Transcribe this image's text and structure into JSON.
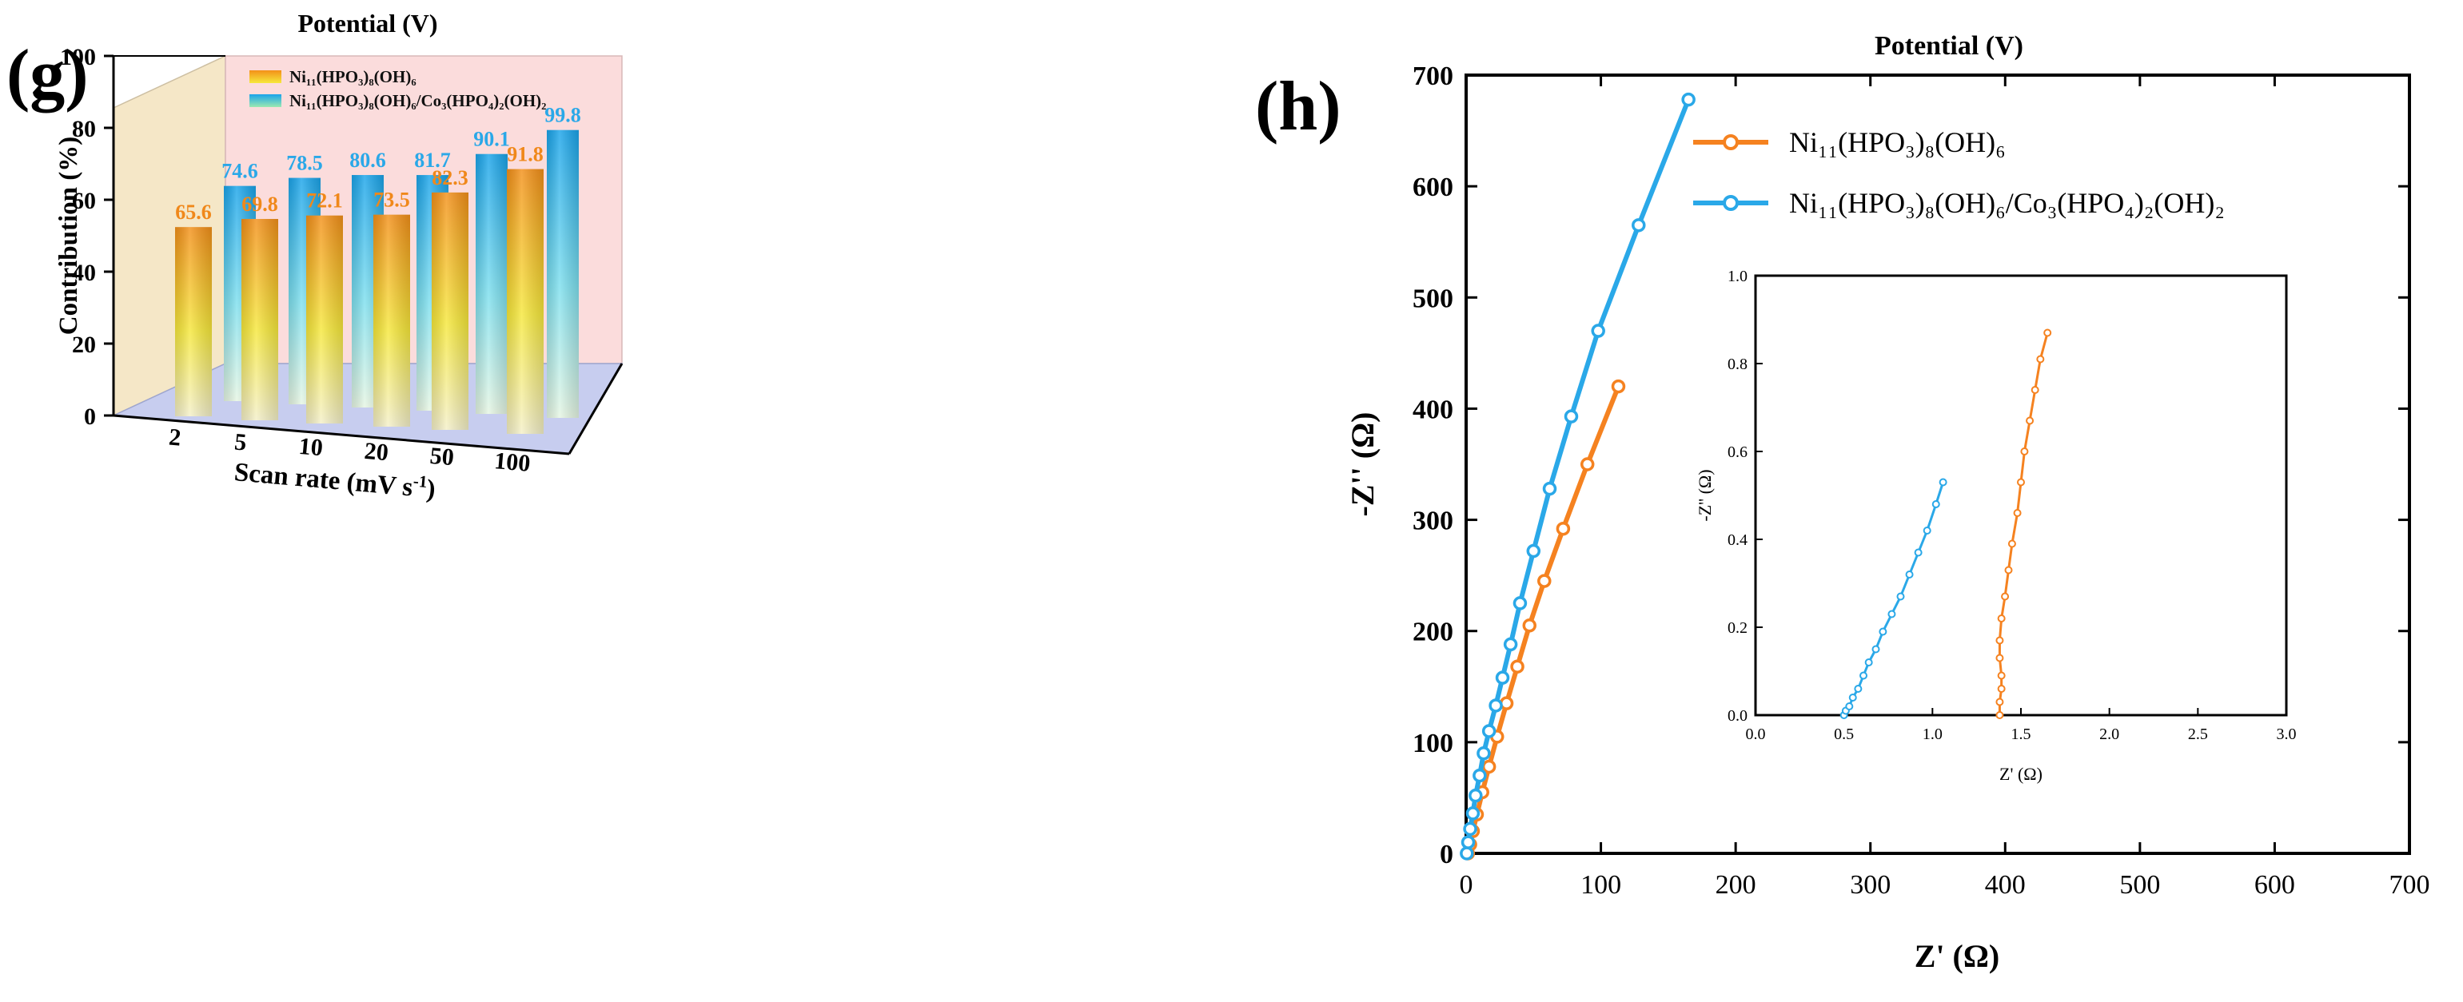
{
  "chart_data": [
    {
      "panel": "(g)",
      "type": "bar",
      "title": "Potential (V)",
      "xlabel": "Scan rate (mV s",
      "xlabel_sup": "-1",
      "xlabel_close": ")",
      "ylabel": "Contribution (%)",
      "ylim": [
        0,
        100
      ],
      "yticks": [
        "0",
        "20",
        "40",
        "60",
        "80",
        "100"
      ],
      "categories": [
        "2",
        "5",
        "10",
        "20",
        "50",
        "100"
      ],
      "legend_position": "top-left",
      "series": [
        {
          "name": "Ni11(HPO3)8(OH)6",
          "legend_label": "Ni₁₁(HPO₃)₈(OH)₆",
          "color": "#f0941e",
          "values": [
            65.6,
            69.8,
            72.1,
            73.5,
            82.3,
            91.8
          ],
          "labels": [
            "65.6",
            "69.8",
            "72.1",
            "73.5",
            "82.3",
            "91.8"
          ]
        },
        {
          "name": "Ni11(HPO3)8(OH)6/Co3(HPO4)2(OH)2",
          "legend_label": "Ni₁₁(HPO₃)₈(OH)₆/Co₃(HPO₄)₂(OH)₂",
          "color": "#2aa8e8",
          "values": [
            74.6,
            78.5,
            80.6,
            81.7,
            90.1,
            99.8
          ],
          "labels": [
            "74.6",
            "78.5",
            "80.6",
            "81.7",
            "90.1",
            "99.8"
          ]
        }
      ]
    },
    {
      "panel": "(h)",
      "type": "line",
      "title": "Potential (V)",
      "xlabel": "Z' (Ω)",
      "ylabel": "-Z'' (Ω)",
      "xlim": [
        0,
        700
      ],
      "ylim": [
        0,
        700
      ],
      "xticks": [
        "0",
        "100",
        "200",
        "300",
        "400",
        "500",
        "600",
        "700"
      ],
      "yticks": [
        "0",
        "100",
        "200",
        "300",
        "400",
        "500",
        "600",
        "700"
      ],
      "legend_position": "top-right",
      "series": [
        {
          "name": "Ni11(HPO3)8(OH)6",
          "legend_label": "Ni₁₁(HPO₃)₈(OH)₆",
          "color": "#f58220",
          "x": [
            1.4,
            3,
            5,
            8,
            12,
            17,
            23,
            30,
            38,
            47,
            58,
            72,
            90,
            113
          ],
          "y": [
            0,
            8,
            20,
            35,
            55,
            78,
            105,
            135,
            168,
            205,
            245,
            292,
            350,
            420
          ]
        },
        {
          "name": "Ni11(HPO3)8(OH)6/Co3(HPO4)2(OH)2",
          "legend_label": "Ni₁₁(HPO₃)₈(OH)₆/Co₃(HPO₄)₂(OH)₂",
          "color": "#2aa8e8",
          "x": [
            0.5,
            1.5,
            3,
            5,
            7,
            10,
            13,
            17,
            22,
            27,
            33,
            40,
            50,
            62,
            78,
            98,
            128,
            165
          ],
          "y": [
            0,
            10,
            22,
            36,
            52,
            70,
            90,
            110,
            133,
            158,
            188,
            225,
            272,
            328,
            393,
            470,
            565,
            678
          ]
        }
      ],
      "inset": {
        "xlabel": "Z' (Ω)",
        "ylabel": "-Z'' (Ω)",
        "xlim": [
          0,
          3
        ],
        "ylim": [
          0,
          1
        ],
        "xticks": [
          "0.0",
          "0.5",
          "1.0",
          "1.5",
          "2.0",
          "2.5",
          "3.0"
        ],
        "yticks": [
          "0.0",
          "0.2",
          "0.4",
          "0.6",
          "0.8",
          "1.0"
        ],
        "series": [
          {
            "name": "Ni11(HPO3)8(OH)6",
            "color": "#f58220",
            "x": [
              1.38,
              1.38,
              1.39,
              1.39,
              1.38,
              1.38,
              1.39,
              1.41,
              1.43,
              1.45,
              1.48,
              1.5,
              1.52,
              1.55,
              1.58,
              1.61,
              1.65
            ],
            "y": [
              0,
              0.03,
              0.06,
              0.09,
              0.13,
              0.17,
              0.22,
              0.27,
              0.33,
              0.39,
              0.46,
              0.53,
              0.6,
              0.67,
              0.74,
              0.81,
              0.87
            ]
          },
          {
            "name": "Ni11(HPO3)8(OH)6/Co3(HPO4)2(OH)2",
            "color": "#2aa8e8",
            "x": [
              0.5,
              0.51,
              0.53,
              0.55,
              0.58,
              0.61,
              0.64,
              0.68,
              0.72,
              0.77,
              0.82,
              0.87,
              0.92,
              0.97,
              1.02,
              1.06
            ],
            "y": [
              0,
              0.01,
              0.02,
              0.04,
              0.06,
              0.09,
              0.12,
              0.15,
              0.19,
              0.23,
              0.27,
              0.32,
              0.37,
              0.42,
              0.48,
              0.53
            ]
          }
        ]
      }
    }
  ]
}
